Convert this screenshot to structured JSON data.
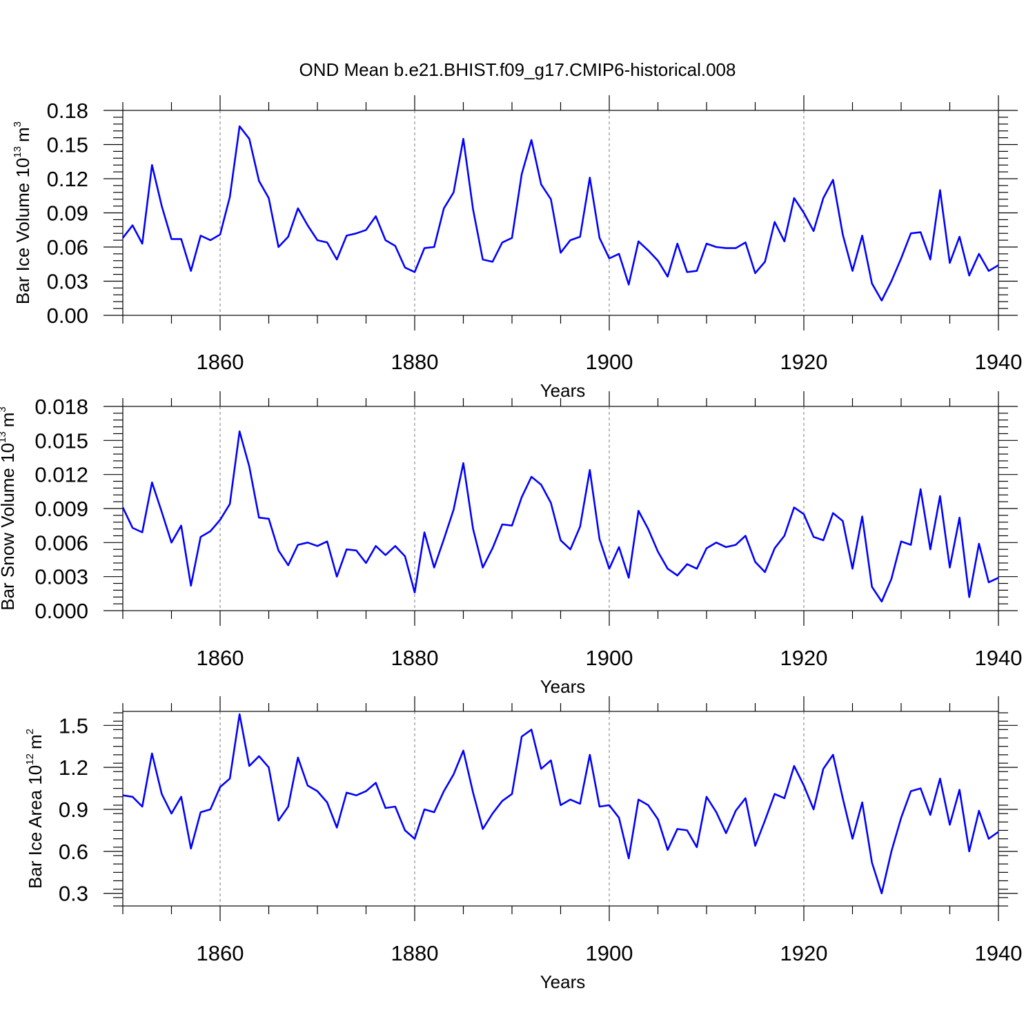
{
  "title": "OND Mean b.e21.BHIST.f09_g17.CMIP6-historical.008",
  "chart_data": [
    {
      "type": "line",
      "title": "OND Mean b.e21.BHIST.f09_g17.CMIP6-historical.008",
      "xlabel": "Years",
      "ylabel_main": "Bar Ice Volume 10",
      "ylabel_exp": "13",
      "ylabel_unit": "m",
      "ylabel_unit_exp": "3",
      "xlim": [
        1850,
        1940
      ],
      "ylim": [
        0.0,
        0.18
      ],
      "xticks": [
        1860,
        1880,
        1900,
        1920,
        1940
      ],
      "yticks": [
        "0.00",
        "0.03",
        "0.06",
        "0.09",
        "0.12",
        "0.15",
        "0.18"
      ],
      "grid": "x-dashed",
      "series": [
        {
          "name": "Bar Ice Volume",
          "color": "#0000ff",
          "x_start": 1850,
          "values": [
            0.068,
            0.079,
            0.063,
            0.132,
            0.096,
            0.067,
            0.067,
            0.039,
            0.07,
            0.066,
            0.071,
            0.104,
            0.166,
            0.155,
            0.118,
            0.103,
            0.06,
            0.069,
            0.094,
            0.079,
            0.066,
            0.064,
            0.049,
            0.07,
            0.072,
            0.075,
            0.087,
            0.066,
            0.061,
            0.042,
            0.038,
            0.059,
            0.06,
            0.094,
            0.108,
            0.155,
            0.093,
            0.049,
            0.047,
            0.064,
            0.068,
            0.124,
            0.154,
            0.115,
            0.102,
            0.055,
            0.066,
            0.069,
            0.121,
            0.068,
            0.05,
            0.054,
            0.027,
            0.065,
            0.057,
            0.048,
            0.034,
            0.063,
            0.038,
            0.039,
            0.063,
            0.06,
            0.059,
            0.059,
            0.064,
            0.037,
            0.047,
            0.082,
            0.065,
            0.103,
            0.09,
            0.074,
            0.103,
            0.119,
            0.071,
            0.039,
            0.07,
            0.028,
            0.013,
            0.03,
            0.05,
            0.072,
            0.073,
            0.049,
            0.11,
            0.046,
            0.069,
            0.035,
            0.054,
            0.039,
            0.044
          ]
        }
      ]
    },
    {
      "type": "line",
      "xlabel": "Years",
      "ylabel_main": "Bar Snow Volume 10",
      "ylabel_exp": "13",
      "ylabel_unit": "m",
      "ylabel_unit_exp": "3",
      "xlim": [
        1850,
        1940
      ],
      "ylim": [
        0.0,
        0.018
      ],
      "xticks": [
        1860,
        1880,
        1900,
        1920,
        1940
      ],
      "yticks": [
        "0.000",
        "0.003",
        "0.006",
        "0.009",
        "0.012",
        "0.015",
        "0.018"
      ],
      "grid": "x-dashed",
      "series": [
        {
          "name": "Bar Snow Volume",
          "color": "#0000ff",
          "x_start": 1850,
          "values": [
            0.0091,
            0.0073,
            0.0069,
            0.0113,
            0.0087,
            0.006,
            0.0075,
            0.0022,
            0.0065,
            0.007,
            0.008,
            0.0094,
            0.0158,
            0.0127,
            0.0082,
            0.0081,
            0.0053,
            0.004,
            0.0058,
            0.006,
            0.0057,
            0.0061,
            0.003,
            0.0054,
            0.0053,
            0.0042,
            0.0057,
            0.0049,
            0.0057,
            0.0048,
            0.0016,
            0.0069,
            0.0038,
            0.0063,
            0.0089,
            0.013,
            0.0072,
            0.0038,
            0.0055,
            0.0076,
            0.0075,
            0.01,
            0.0118,
            0.0111,
            0.0095,
            0.0062,
            0.0054,
            0.0074,
            0.0124,
            0.0063,
            0.0037,
            0.0056,
            0.0029,
            0.0088,
            0.0072,
            0.0052,
            0.0037,
            0.0031,
            0.0041,
            0.0037,
            0.0055,
            0.006,
            0.0056,
            0.0058,
            0.0066,
            0.0043,
            0.0034,
            0.0055,
            0.0066,
            0.0091,
            0.0085,
            0.0065,
            0.0062,
            0.0086,
            0.0079,
            0.0037,
            0.0083,
            0.0021,
            0.0008,
            0.0028,
            0.0061,
            0.0058,
            0.0107,
            0.0054,
            0.0101,
            0.0038,
            0.0082,
            0.0012,
            0.0059,
            0.0025,
            0.0029
          ]
        }
      ]
    },
    {
      "type": "line",
      "xlabel": "Years",
      "ylabel_main": "Bar Ice Area 10",
      "ylabel_exp": "12",
      "ylabel_unit": "m",
      "ylabel_unit_exp": "2",
      "xlim": [
        1850,
        1940
      ],
      "ylim": [
        0.21,
        1.6
      ],
      "xticks": [
        1860,
        1880,
        1900,
        1920,
        1940
      ],
      "yticks": [
        "0.3",
        "0.6",
        "0.9",
        "1.2",
        "1.5"
      ],
      "grid": "x-dashed",
      "series": [
        {
          "name": "Bar Ice Area",
          "color": "#0000ff",
          "x_start": 1850,
          "values": [
            1.0,
            0.99,
            0.92,
            1.3,
            1.01,
            0.87,
            0.99,
            0.62,
            0.88,
            0.9,
            1.06,
            1.12,
            1.58,
            1.21,
            1.28,
            1.2,
            0.82,
            0.92,
            1.27,
            1.07,
            1.03,
            0.95,
            0.77,
            1.02,
            1.0,
            1.03,
            1.09,
            0.91,
            0.92,
            0.75,
            0.69,
            0.9,
            0.88,
            1.03,
            1.15,
            1.32,
            1.02,
            0.76,
            0.87,
            0.96,
            1.01,
            1.42,
            1.47,
            1.19,
            1.25,
            0.93,
            0.97,
            0.94,
            1.29,
            0.92,
            0.93,
            0.84,
            0.55,
            0.97,
            0.93,
            0.83,
            0.61,
            0.76,
            0.75,
            0.63,
            0.99,
            0.88,
            0.73,
            0.89,
            0.98,
            0.64,
            0.82,
            1.01,
            0.98,
            1.21,
            1.07,
            0.9,
            1.19,
            1.29,
            0.98,
            0.69,
            0.95,
            0.52,
            0.3,
            0.6,
            0.84,
            1.03,
            1.05,
            0.86,
            1.12,
            0.79,
            1.04,
            0.6,
            0.89,
            0.69,
            0.74
          ]
        }
      ]
    }
  ]
}
